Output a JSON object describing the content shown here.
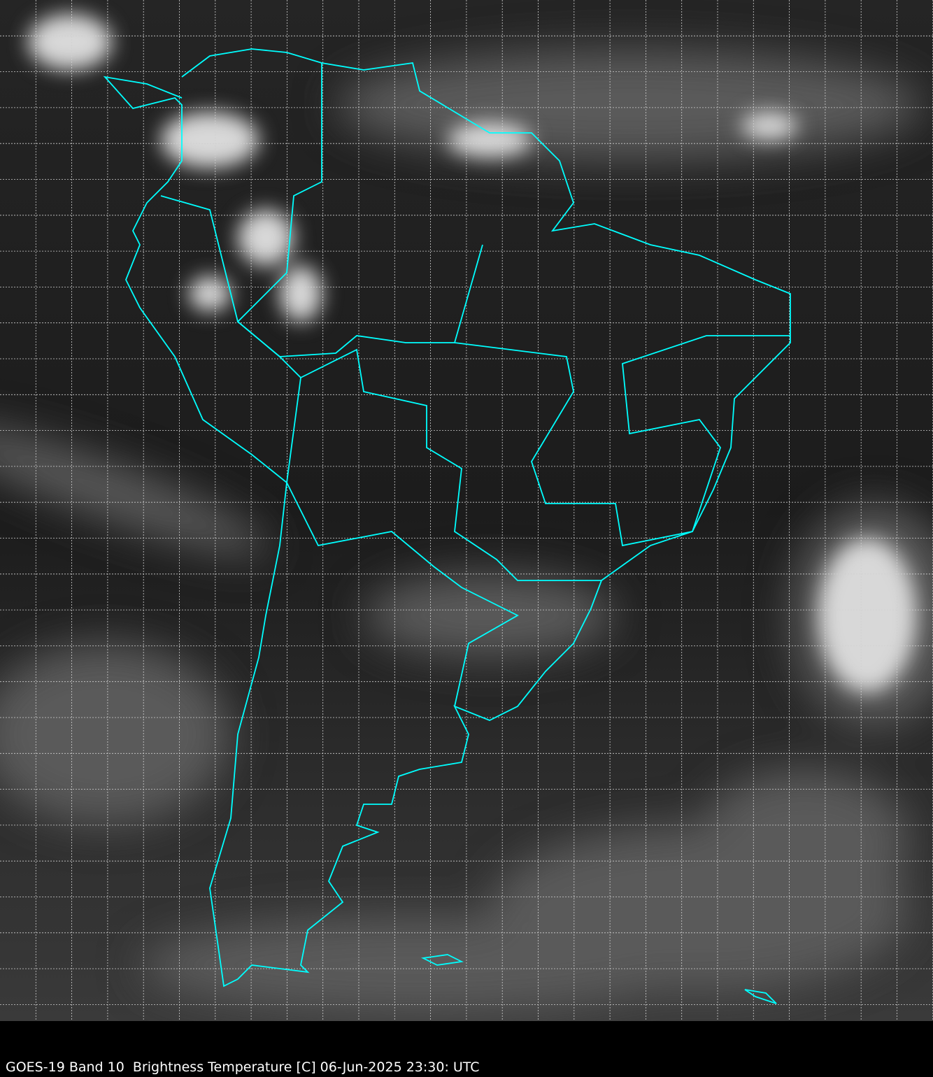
{
  "caption": "GOES-19 Band 10  Brightness Temperature [C] 06-Jun-2025 23:30: UTC",
  "colors": {
    "background": "#2a2a2a",
    "borders": "#00ffff",
    "grid": "#d0d0d0",
    "caption_bar": "#000000"
  }
}
